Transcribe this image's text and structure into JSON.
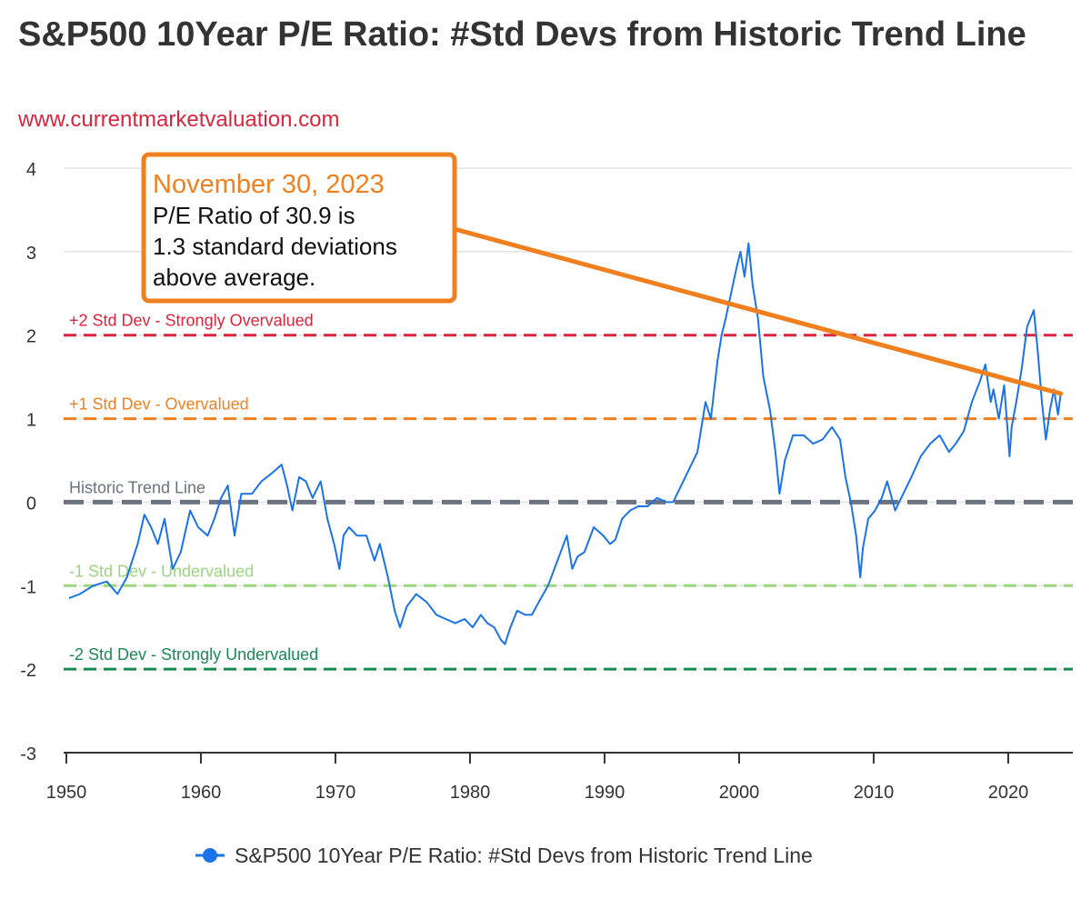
{
  "header": {
    "title": "S&P500 10Year P/E Ratio: #Std Devs from Historic Trend Line",
    "subtitle": "www.currentmarketvaluation.com"
  },
  "chart_data": {
    "type": "line",
    "title": "S&P500 10Year P/E Ratio: #Std Devs from Historic Trend Line",
    "subtitle": "www.currentmarketvaluation.com",
    "xlabel": "",
    "ylabel": "",
    "xlim": [
      1949.8,
      2024.8
    ],
    "ylim": [
      -3,
      4
    ],
    "xticks": [
      1950,
      1960,
      1970,
      1980,
      1990,
      2000,
      2010,
      2020
    ],
    "yticks": [
      -3,
      -2,
      -1,
      0,
      1,
      2,
      3,
      4
    ],
    "grid": true,
    "legend": "bottom",
    "colors": {
      "series": "#1a73e8",
      "strongly_overvalued": "#d7263d",
      "overvalued": "#f0801f",
      "trend": "#6b7280",
      "undervalued": "#9bd67f",
      "strongly_undervalued": "#1a8a55",
      "callout": "#f0801f"
    },
    "reference_lines": [
      {
        "y": 2,
        "label": "+2 Std Dev - Strongly Overvalued",
        "color": "#d7263d"
      },
      {
        "y": 1,
        "label": "+1 Std Dev - Overvalued",
        "color": "#f0801f"
      },
      {
        "y": 0,
        "label": "Historic Trend Line",
        "color": "#6b7280"
      },
      {
        "y": -1,
        "label": "-1 Std Dev - Undervalued",
        "color": "#9bd67f"
      },
      {
        "y": -2,
        "label": "-2 Std Dev - Strongly Undervalued",
        "color": "#1a8a55"
      }
    ],
    "callout": {
      "date": "November 30, 2023",
      "lines": [
        "P/E Ratio of 30.9 is",
        "1.3 standard deviations",
        "above average."
      ],
      "point": {
        "x": 2023.9,
        "y": 1.3
      }
    },
    "series": [
      {
        "name": "S&P500 10Year P/E Ratio: #Std Devs from Historic Trend Line",
        "x": [
          1950.2,
          1951.0,
          1952.0,
          1953.0,
          1953.8,
          1954.5,
          1955.3,
          1955.8,
          1956.3,
          1956.8,
          1957.3,
          1957.9,
          1958.5,
          1959.2,
          1959.8,
          1960.5,
          1961.0,
          1961.5,
          1962.0,
          1962.5,
          1963.0,
          1963.8,
          1964.5,
          1965.3,
          1966.0,
          1966.4,
          1966.8,
          1967.3,
          1967.8,
          1968.3,
          1968.9,
          1969.4,
          1969.9,
          1970.3,
          1970.6,
          1971.0,
          1971.6,
          1972.3,
          1972.9,
          1973.3,
          1973.9,
          1974.4,
          1974.8,
          1975.3,
          1976.0,
          1976.8,
          1977.5,
          1978.2,
          1978.9,
          1979.6,
          1980.2,
          1980.8,
          1981.3,
          1981.8,
          1982.3,
          1982.6,
          1983.0,
          1983.5,
          1984.1,
          1984.6,
          1985.1,
          1985.8,
          1986.5,
          1987.2,
          1987.6,
          1988.0,
          1988.5,
          1989.2,
          1989.9,
          1990.4,
          1990.8,
          1991.3,
          1991.9,
          1992.5,
          1993.2,
          1993.9,
          1994.6,
          1995.1,
          1995.7,
          1996.3,
          1996.9,
          1997.5,
          1997.9,
          1998.4,
          1998.7,
          1999.0,
          1999.4,
          1999.8,
          2000.1,
          2000.4,
          2000.7,
          2001.0,
          2001.4,
          2001.8,
          2002.3,
          2002.7,
          2003.0,
          2003.4,
          2004.0,
          2004.8,
          2005.5,
          2006.2,
          2006.9,
          2007.5,
          2007.9,
          2008.3,
          2008.7,
          2009.0,
          2009.2,
          2009.6,
          2010.1,
          2010.6,
          2011.0,
          2011.6,
          2012.2,
          2012.8,
          2013.5,
          2014.2,
          2014.9,
          2015.6,
          2016.1,
          2016.7,
          2017.3,
          2017.9,
          2018.3,
          2018.7,
          2018.9,
          2019.3,
          2019.7,
          2020.1,
          2020.25,
          2020.6,
          2021.0,
          2021.4,
          2021.9,
          2022.2,
          2022.5,
          2022.8,
          2023.1,
          2023.4,
          2023.7,
          2023.9
        ],
        "values": [
          -1.15,
          -1.1,
          -1.0,
          -0.95,
          -1.1,
          -0.9,
          -0.5,
          -0.15,
          -0.3,
          -0.5,
          -0.2,
          -0.8,
          -0.6,
          -0.1,
          -0.3,
          -0.4,
          -0.2,
          0.05,
          0.2,
          -0.4,
          0.1,
          0.1,
          0.25,
          0.35,
          0.45,
          0.2,
          -0.1,
          0.3,
          0.25,
          0.05,
          0.25,
          -0.2,
          -0.5,
          -0.8,
          -0.4,
          -0.3,
          -0.4,
          -0.4,
          -0.7,
          -0.5,
          -0.9,
          -1.3,
          -1.5,
          -1.25,
          -1.1,
          -1.2,
          -1.35,
          -1.4,
          -1.45,
          -1.4,
          -1.5,
          -1.35,
          -1.45,
          -1.5,
          -1.65,
          -1.7,
          -1.5,
          -1.3,
          -1.35,
          -1.35,
          -1.2,
          -1.0,
          -0.7,
          -0.4,
          -0.8,
          -0.65,
          -0.6,
          -0.3,
          -0.4,
          -0.5,
          -0.45,
          -0.2,
          -0.1,
          -0.05,
          -0.05,
          0.05,
          0.0,
          0.0,
          0.2,
          0.4,
          0.6,
          1.2,
          1.0,
          1.7,
          2.0,
          2.2,
          2.5,
          2.8,
          3.0,
          2.7,
          3.1,
          2.6,
          2.2,
          1.5,
          1.1,
          0.6,
          0.1,
          0.5,
          0.8,
          0.8,
          0.7,
          0.75,
          0.9,
          0.75,
          0.3,
          0.0,
          -0.4,
          -0.9,
          -0.55,
          -0.2,
          -0.1,
          0.05,
          0.25,
          -0.1,
          0.1,
          0.3,
          0.55,
          0.7,
          0.8,
          0.6,
          0.7,
          0.85,
          1.2,
          1.45,
          1.65,
          1.2,
          1.35,
          1.0,
          1.4,
          0.55,
          0.9,
          1.2,
          1.6,
          2.1,
          2.3,
          1.8,
          1.2,
          0.75,
          1.1,
          1.35,
          1.05,
          1.3
        ]
      }
    ]
  }
}
